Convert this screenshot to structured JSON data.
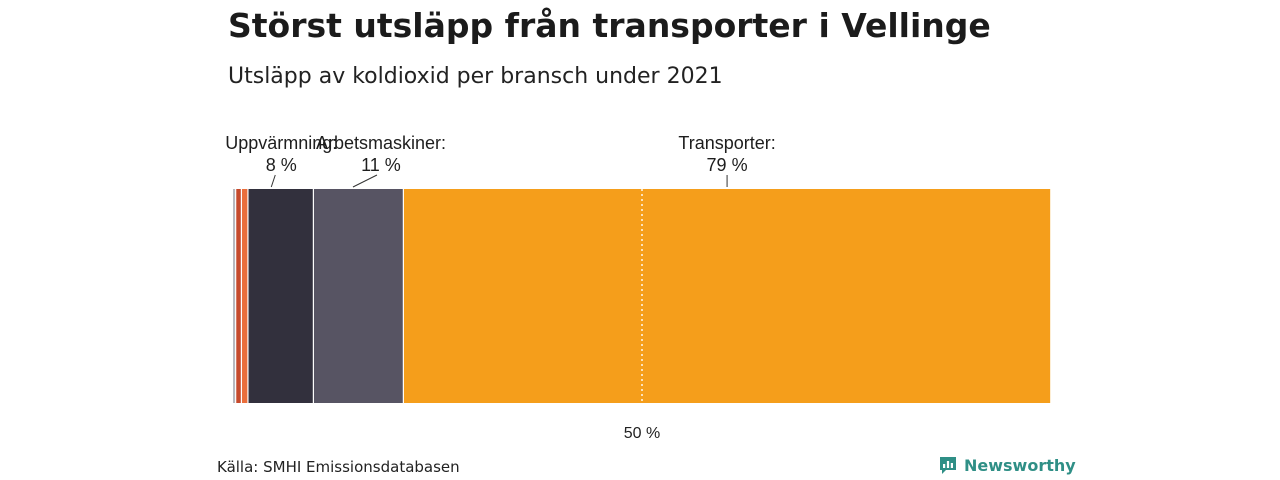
{
  "title": "Störst utsläpp från transporter i Vellinge",
  "subtitle": "Utsläpp av koldioxid per bransch under 2021",
  "source": "Källa: SMHI Emissionsdatabasen",
  "brand": "Newsworthy",
  "chart_data": {
    "type": "bar",
    "orientation": "horizontal-stacked-100",
    "title": "Störst utsläpp från transporter i Vellinge",
    "subtitle": "Utsläpp av koldioxid per bransch under 2021",
    "xlim": [
      0,
      100
    ],
    "unit": "%",
    "segments": [
      {
        "name": "",
        "value": 0.4,
        "color": "#b8b8be",
        "label": "",
        "value_label": ""
      },
      {
        "name": "",
        "value": 0.7,
        "color": "#c64a2c",
        "label": "",
        "value_label": ""
      },
      {
        "name": "",
        "value": 0.8,
        "color": "#ea6e3c",
        "label": "",
        "value_label": ""
      },
      {
        "name": "Uppvärmning",
        "value": 8,
        "color": "#32303d",
        "label": "Uppvärmning:",
        "value_label": "8 %"
      },
      {
        "name": "Arbetsmaskiner",
        "value": 11,
        "color": "#575463",
        "label": "Arbetsmaskiner:",
        "value_label": "11 %"
      },
      {
        "name": "Transporter",
        "value": 79,
        "color": "#f59e1b",
        "label": "Transporter:",
        "value_label": "79 %"
      }
    ],
    "reference_line": {
      "value": 50,
      "label": "50 %"
    }
  }
}
